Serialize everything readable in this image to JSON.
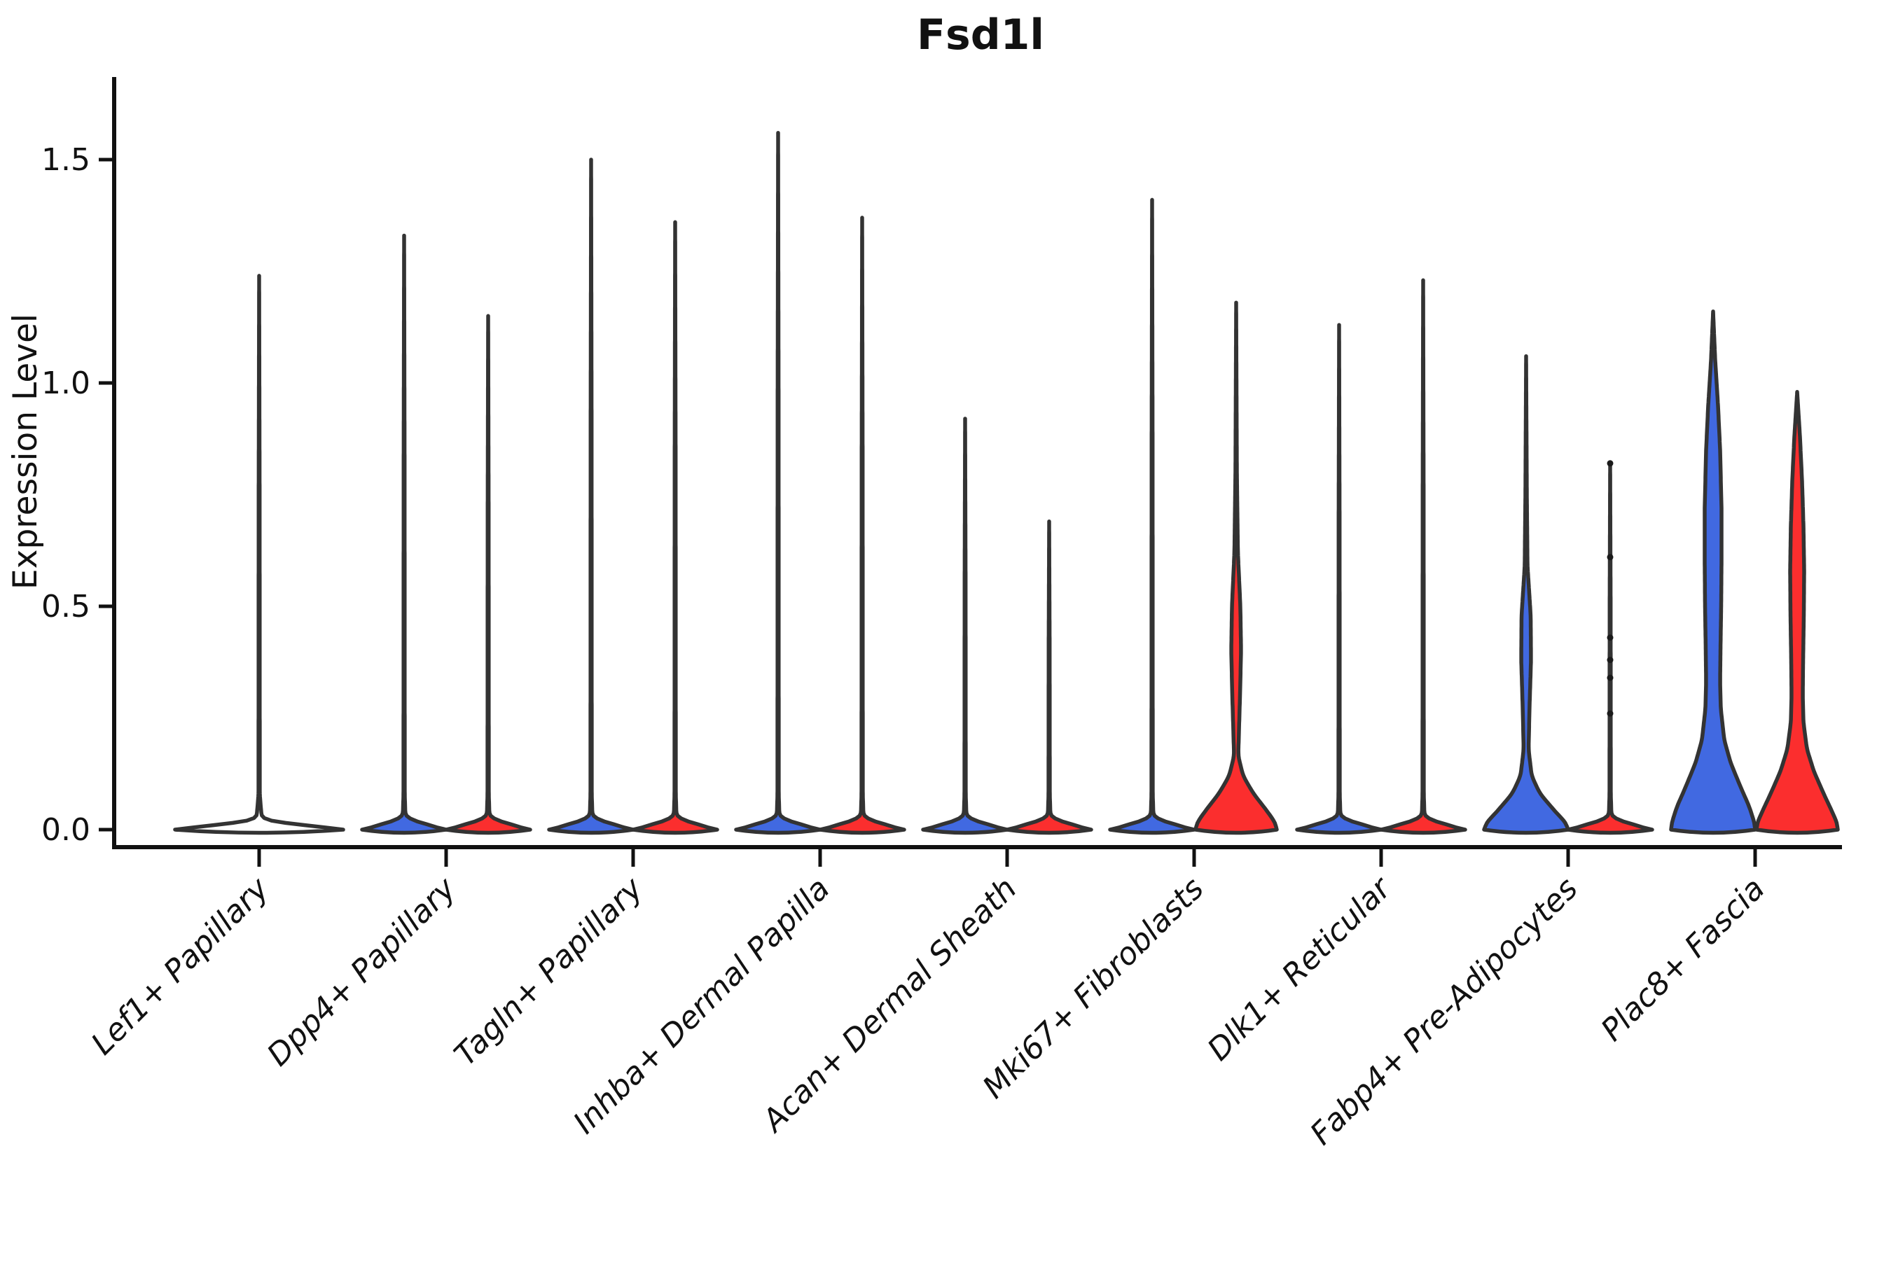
{
  "title": "Fsd1l",
  "chart_data": {
    "type": "violin",
    "title": "Fsd1l",
    "ylabel": "Expression Level",
    "xlabel": "",
    "grid": false,
    "legend_position": "none",
    "ytick_labels": [
      "0.0",
      "0.5",
      "1.0",
      "1.5"
    ],
    "ytick_values": [
      0.0,
      0.5,
      1.0,
      1.5
    ],
    "ylim": [
      -0.06,
      1.68
    ],
    "split_colors": {
      "left_blue": "#4169e1",
      "right_red": "#fb2e2e"
    },
    "outline_color": "#333333",
    "axis_color": "#111111",
    "categories": [
      "Lef1+ Papillary",
      "Dpp4+ Papillary",
      "Tagln+ Papillary",
      "Inhba+ Dermal Papilla",
      "Acan+ Dermal Sheath",
      "Mki67+ Fibroblasts",
      "Dlk1+ Reticular",
      "Fabp4+ Pre-Adipocytes",
      "Plac8+ Fascia"
    ],
    "violins": [
      {
        "category": "Lef1+ Papillary",
        "side": "single",
        "fill": "none",
        "max": 1.24,
        "profile": [
          [
            1.24,
            0
          ],
          [
            0.74,
            0.7
          ],
          [
            0.08,
            0.9
          ],
          [
            0.02,
            4
          ],
          [
            0.01,
            62
          ],
          [
            0.005,
            104
          ],
          [
            0,
            120
          ]
        ],
        "points": []
      },
      {
        "category": "Dpp4+ Papillary",
        "side": "left",
        "fill": "blue",
        "max": 1.33,
        "profile": [
          [
            1.33,
            0
          ],
          [
            0.8,
            0.7
          ],
          [
            0.08,
            0.9
          ],
          [
            0.025,
            2
          ],
          [
            0.012,
            30
          ],
          [
            0.005,
            52
          ],
          [
            0,
            60
          ]
        ],
        "points": []
      },
      {
        "category": "Dpp4+ Papillary",
        "side": "right",
        "fill": "red",
        "max": 1.15,
        "profile": [
          [
            1.15,
            0
          ],
          [
            0.7,
            0.7
          ],
          [
            0.08,
            0.9
          ],
          [
            0.025,
            2
          ],
          [
            0.012,
            30
          ],
          [
            0.005,
            52
          ],
          [
            0,
            60
          ]
        ],
        "points": []
      },
      {
        "category": "Tagln+ Papillary",
        "side": "left",
        "fill": "blue",
        "max": 1.5,
        "profile": [
          [
            1.5,
            0
          ],
          [
            0.9,
            0.7
          ],
          [
            0.08,
            0.9
          ],
          [
            0.025,
            2
          ],
          [
            0.012,
            30
          ],
          [
            0.005,
            52
          ],
          [
            0,
            60
          ]
        ],
        "points": []
      },
      {
        "category": "Tagln+ Papillary",
        "side": "right",
        "fill": "red",
        "max": 1.36,
        "profile": [
          [
            1.36,
            0
          ],
          [
            0.82,
            0.7
          ],
          [
            0.08,
            0.9
          ],
          [
            0.025,
            2
          ],
          [
            0.012,
            30
          ],
          [
            0.005,
            52
          ],
          [
            0,
            60
          ]
        ],
        "points": []
      },
      {
        "category": "Inhba+ Dermal Papilla",
        "side": "left",
        "fill": "blue",
        "max": 1.56,
        "profile": [
          [
            1.56,
            0
          ],
          [
            0.94,
            0.7
          ],
          [
            0.08,
            0.9
          ],
          [
            0.025,
            2
          ],
          [
            0.012,
            30
          ],
          [
            0.005,
            52
          ],
          [
            0,
            60
          ]
        ],
        "points": []
      },
      {
        "category": "Inhba+ Dermal Papilla",
        "side": "right",
        "fill": "red",
        "max": 1.37,
        "profile": [
          [
            1.37,
            0
          ],
          [
            0.82,
            0.7
          ],
          [
            0.08,
            0.9
          ],
          [
            0.025,
            2
          ],
          [
            0.012,
            30
          ],
          [
            0.005,
            52
          ],
          [
            0,
            60
          ]
        ],
        "points": []
      },
      {
        "category": "Acan+ Dermal Sheath",
        "side": "left",
        "fill": "blue",
        "max": 0.92,
        "profile": [
          [
            0.92,
            0
          ],
          [
            0.55,
            0.7
          ],
          [
            0.08,
            0.9
          ],
          [
            0.025,
            2
          ],
          [
            0.012,
            30
          ],
          [
            0.005,
            52
          ],
          [
            0,
            60
          ]
        ],
        "points": []
      },
      {
        "category": "Acan+ Dermal Sheath",
        "side": "right",
        "fill": "red",
        "max": 0.69,
        "profile": [
          [
            0.69,
            0
          ],
          [
            0.41,
            0.7
          ],
          [
            0.08,
            0.9
          ],
          [
            0.025,
            2
          ],
          [
            0.012,
            30
          ],
          [
            0.005,
            52
          ],
          [
            0,
            60
          ]
        ],
        "points": []
      },
      {
        "category": "Mki67+ Fibroblasts",
        "side": "left",
        "fill": "blue",
        "max": 1.41,
        "profile": [
          [
            1.41,
            0
          ],
          [
            0.85,
            0.7
          ],
          [
            0.08,
            0.9
          ],
          [
            0.025,
            2
          ],
          [
            0.012,
            30
          ],
          [
            0.005,
            52
          ],
          [
            0,
            60
          ]
        ],
        "points": []
      },
      {
        "category": "Mki67+ Fibroblasts",
        "side": "right",
        "fill": "red",
        "max": 1.18,
        "profile": [
          [
            1.18,
            0
          ],
          [
            0.8,
            1
          ],
          [
            0.62,
            2.5
          ],
          [
            0.5,
            6
          ],
          [
            0.4,
            7
          ],
          [
            0.3,
            5.5
          ],
          [
            0.22,
            4
          ],
          [
            0.165,
            3
          ],
          [
            0.12,
            10
          ],
          [
            0.08,
            25
          ],
          [
            0.04,
            45
          ],
          [
            0.015,
            56
          ],
          [
            0,
            58
          ]
        ],
        "points": []
      },
      {
        "category": "Dlk1+ Reticular",
        "side": "left",
        "fill": "blue",
        "max": 1.13,
        "profile": [
          [
            1.13,
            0
          ],
          [
            0.68,
            0.7
          ],
          [
            0.08,
            0.9
          ],
          [
            0.025,
            2
          ],
          [
            0.012,
            30
          ],
          [
            0.005,
            52
          ],
          [
            0,
            60
          ]
        ],
        "points": []
      },
      {
        "category": "Dlk1+ Reticular",
        "side": "right",
        "fill": "red",
        "max": 1.23,
        "profile": [
          [
            1.23,
            0
          ],
          [
            0.74,
            0.7
          ],
          [
            0.08,
            0.9
          ],
          [
            0.025,
            2
          ],
          [
            0.012,
            30
          ],
          [
            0.005,
            52
          ],
          [
            0,
            60
          ]
        ],
        "points": []
      },
      {
        "category": "Fabp4+ Pre-Adipocytes",
        "side": "left",
        "fill": "blue",
        "max": 1.06,
        "profile": [
          [
            1.06,
            0
          ],
          [
            0.75,
            1
          ],
          [
            0.59,
            2
          ],
          [
            0.48,
            6.5
          ],
          [
            0.38,
            7
          ],
          [
            0.28,
            5
          ],
          [
            0.18,
            3.5
          ],
          [
            0.12,
            8
          ],
          [
            0.08,
            20
          ],
          [
            0.04,
            42
          ],
          [
            0.015,
            57
          ],
          [
            0,
            60
          ]
        ],
        "points": []
      },
      {
        "category": "Fabp4+ Pre-Adipocytes",
        "side": "right",
        "fill": "red",
        "max": 0.82,
        "profile": [
          [
            0.82,
            0
          ],
          [
            0.5,
            0.7
          ],
          [
            0.08,
            0.9
          ],
          [
            0.025,
            2
          ],
          [
            0.012,
            30
          ],
          [
            0.005,
            52
          ],
          [
            0,
            60
          ]
        ],
        "points": [
          0.82,
          0.61,
          0.43,
          0.38,
          0.34,
          0.26
        ]
      },
      {
        "category": "Plac8+ Fascia",
        "side": "left",
        "fill": "blue",
        "max": 1.16,
        "profile": [
          [
            1.16,
            0
          ],
          [
            1.05,
            3
          ],
          [
            0.95,
            7
          ],
          [
            0.85,
            10
          ],
          [
            0.72,
            12
          ],
          [
            0.6,
            12
          ],
          [
            0.5,
            11.5
          ],
          [
            0.4,
            10.5
          ],
          [
            0.33,
            10
          ],
          [
            0.27,
            11
          ],
          [
            0.2,
            16
          ],
          [
            0.15,
            25
          ],
          [
            0.1,
            38
          ],
          [
            0.05,
            52
          ],
          [
            0.015,
            59
          ],
          [
            0,
            60
          ]
        ],
        "points": []
      },
      {
        "category": "Plac8+ Fascia",
        "side": "right",
        "fill": "red",
        "max": 0.98,
        "profile": [
          [
            0.98,
            0
          ],
          [
            0.88,
            4
          ],
          [
            0.78,
            7
          ],
          [
            0.68,
            9
          ],
          [
            0.58,
            10
          ],
          [
            0.48,
            9.5
          ],
          [
            0.38,
            8.5
          ],
          [
            0.3,
            8
          ],
          [
            0.24,
            9
          ],
          [
            0.18,
            14
          ],
          [
            0.13,
            24
          ],
          [
            0.08,
            38
          ],
          [
            0.04,
            50
          ],
          [
            0.015,
            57
          ],
          [
            0,
            58
          ]
        ],
        "points": []
      }
    ]
  }
}
